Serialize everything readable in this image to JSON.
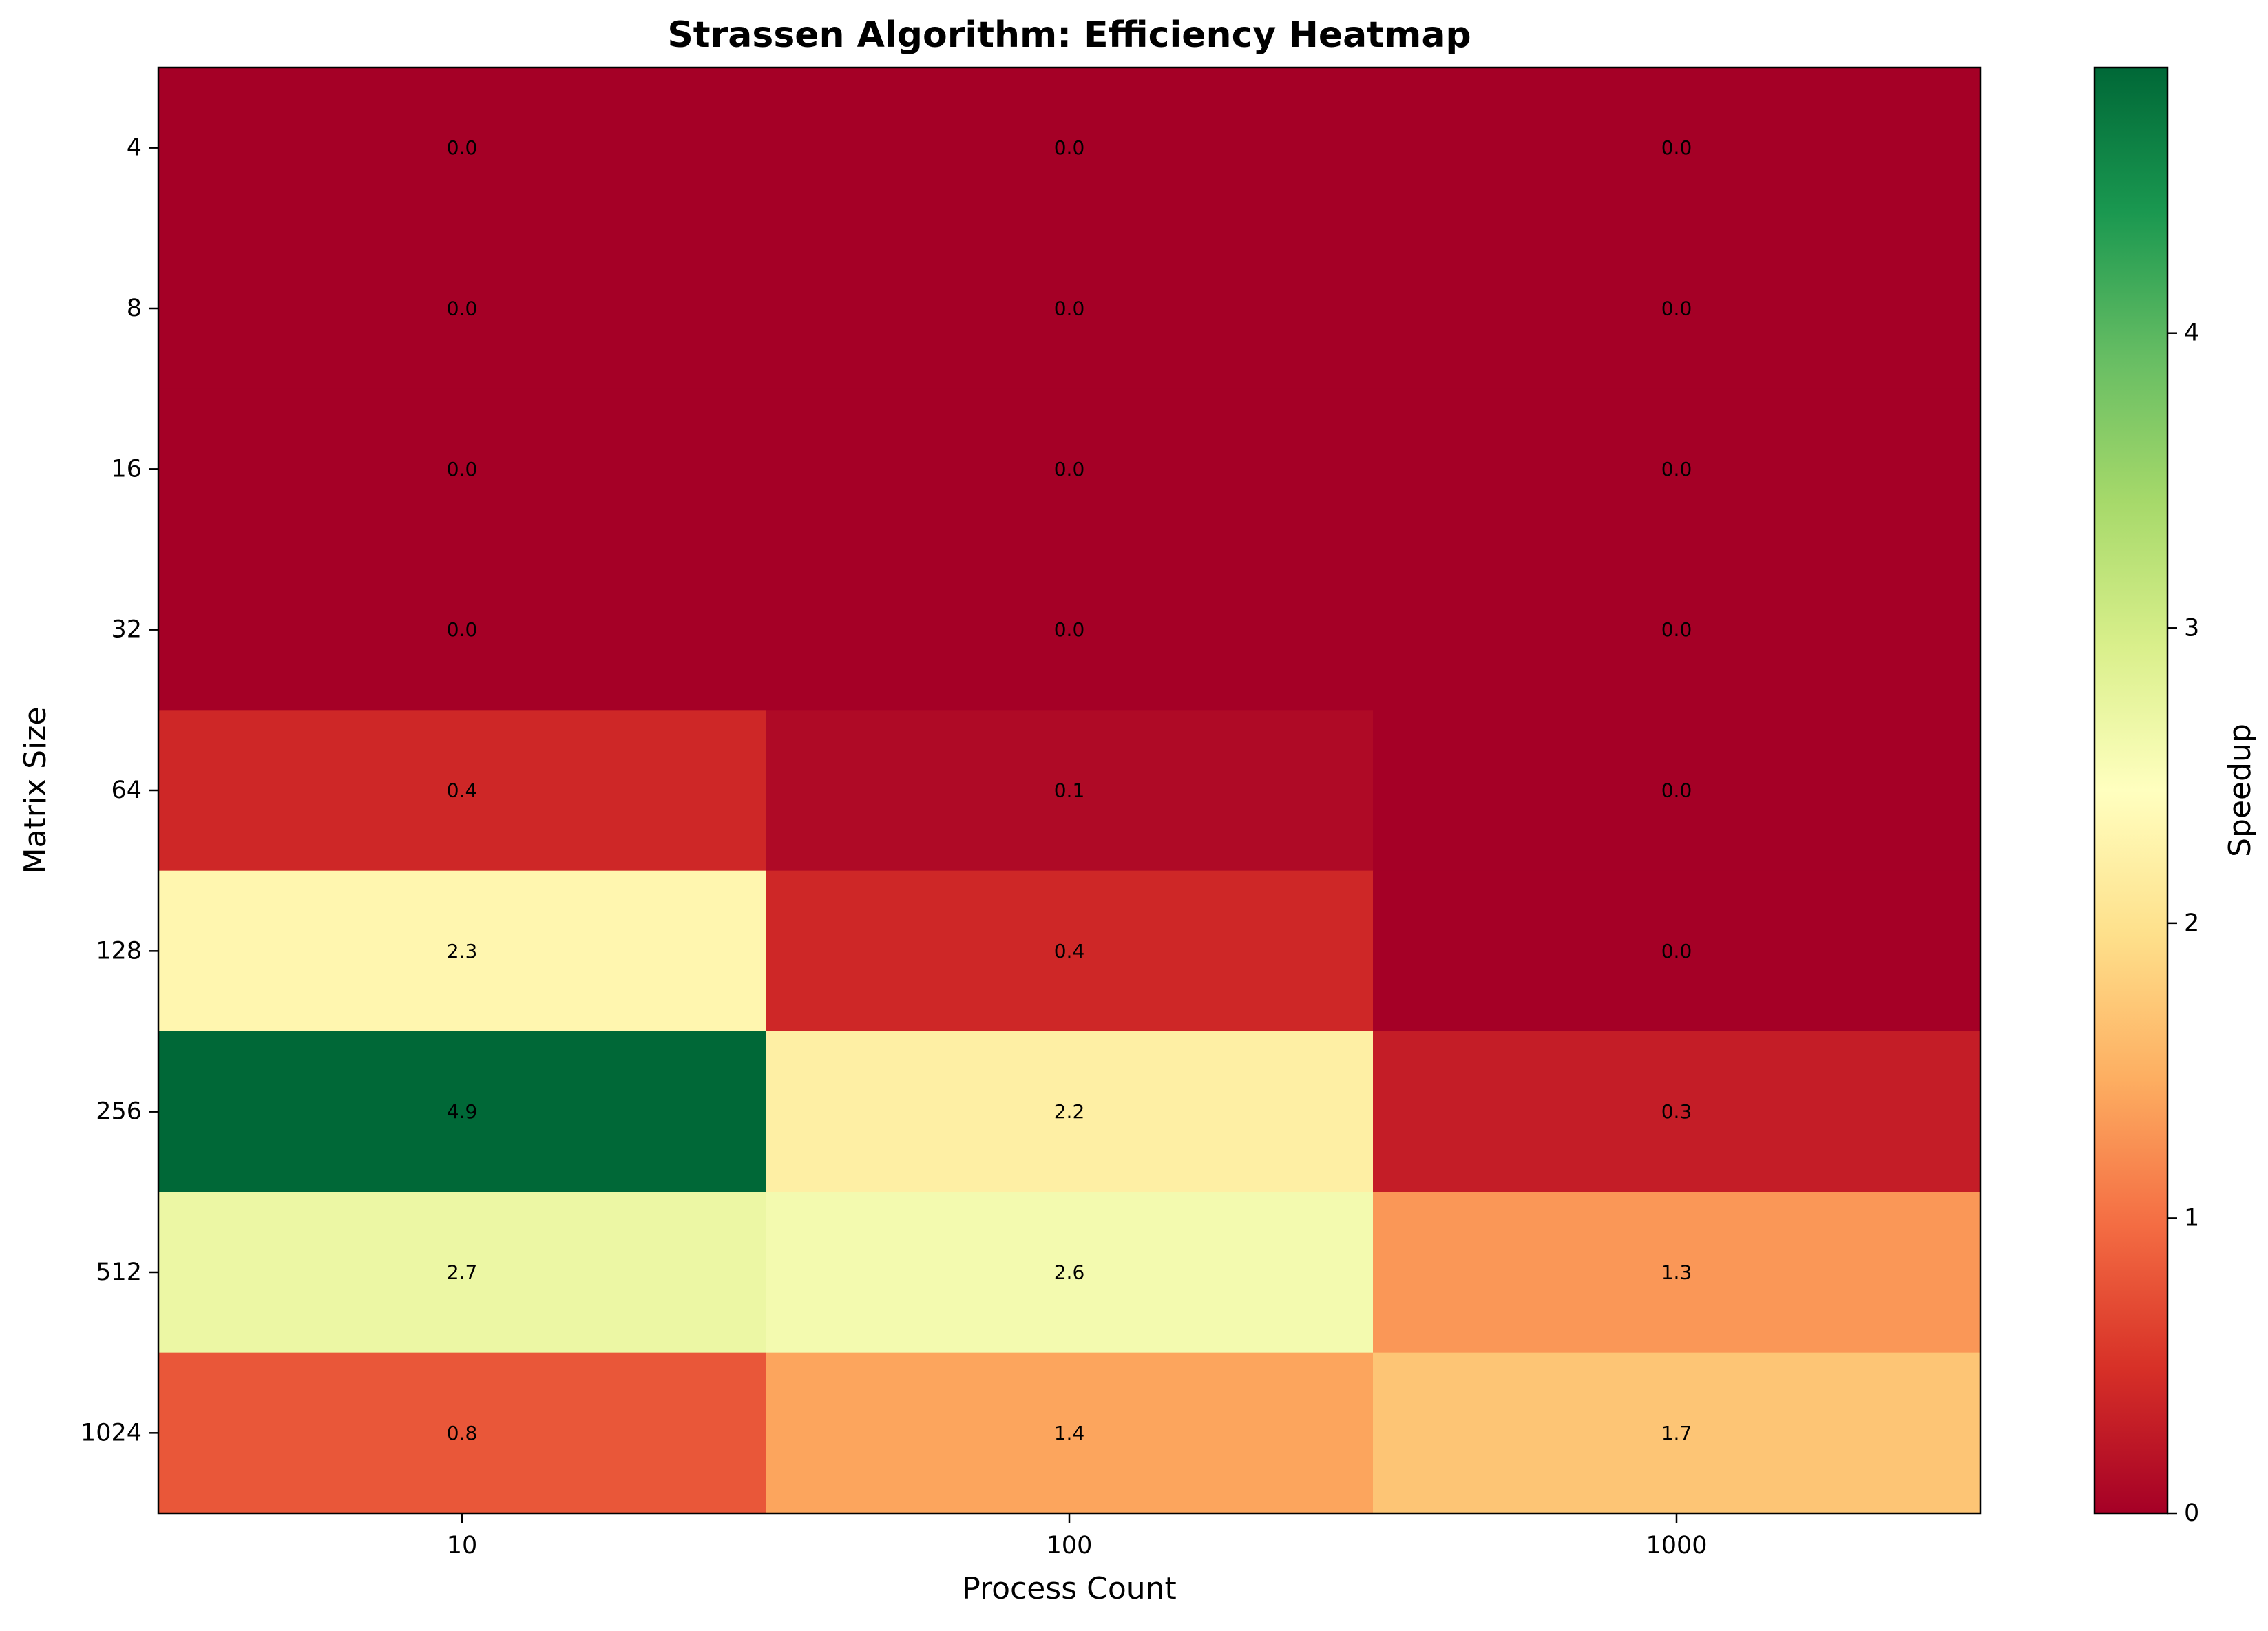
{
  "chart_data": {
    "type": "heatmap",
    "title": "Strassen Algorithm: Efficiency Heatmap",
    "xlabel": "Process Count",
    "ylabel": "Matrix Size",
    "x_categories": [
      "10",
      "100",
      "1000"
    ],
    "y_categories": [
      "4",
      "8",
      "16",
      "32",
      "64",
      "128",
      "256",
      "512",
      "1024"
    ],
    "values": [
      [
        0.0,
        0.0,
        0.0
      ],
      [
        0.0,
        0.0,
        0.0
      ],
      [
        0.0,
        0.0,
        0.0
      ],
      [
        0.0,
        0.0,
        0.0
      ],
      [
        0.4,
        0.1,
        0.0
      ],
      [
        2.3,
        0.4,
        0.0
      ],
      [
        4.9,
        2.2,
        0.3
      ],
      [
        2.7,
        2.6,
        1.3
      ],
      [
        0.8,
        1.4,
        1.7
      ]
    ],
    "colorbar": {
      "label": "Speedup",
      "min": 0,
      "max": 4.9,
      "ticks": [
        0,
        1,
        2,
        3,
        4
      ],
      "colormap": "RdYlGn",
      "stops": [
        "#a50026",
        "#d73027",
        "#f46d43",
        "#fdae61",
        "#fee08b",
        "#ffffbf",
        "#d9ef8b",
        "#a6d96a",
        "#66bd63",
        "#1a9850",
        "#006837"
      ]
    },
    "grid": false
  }
}
